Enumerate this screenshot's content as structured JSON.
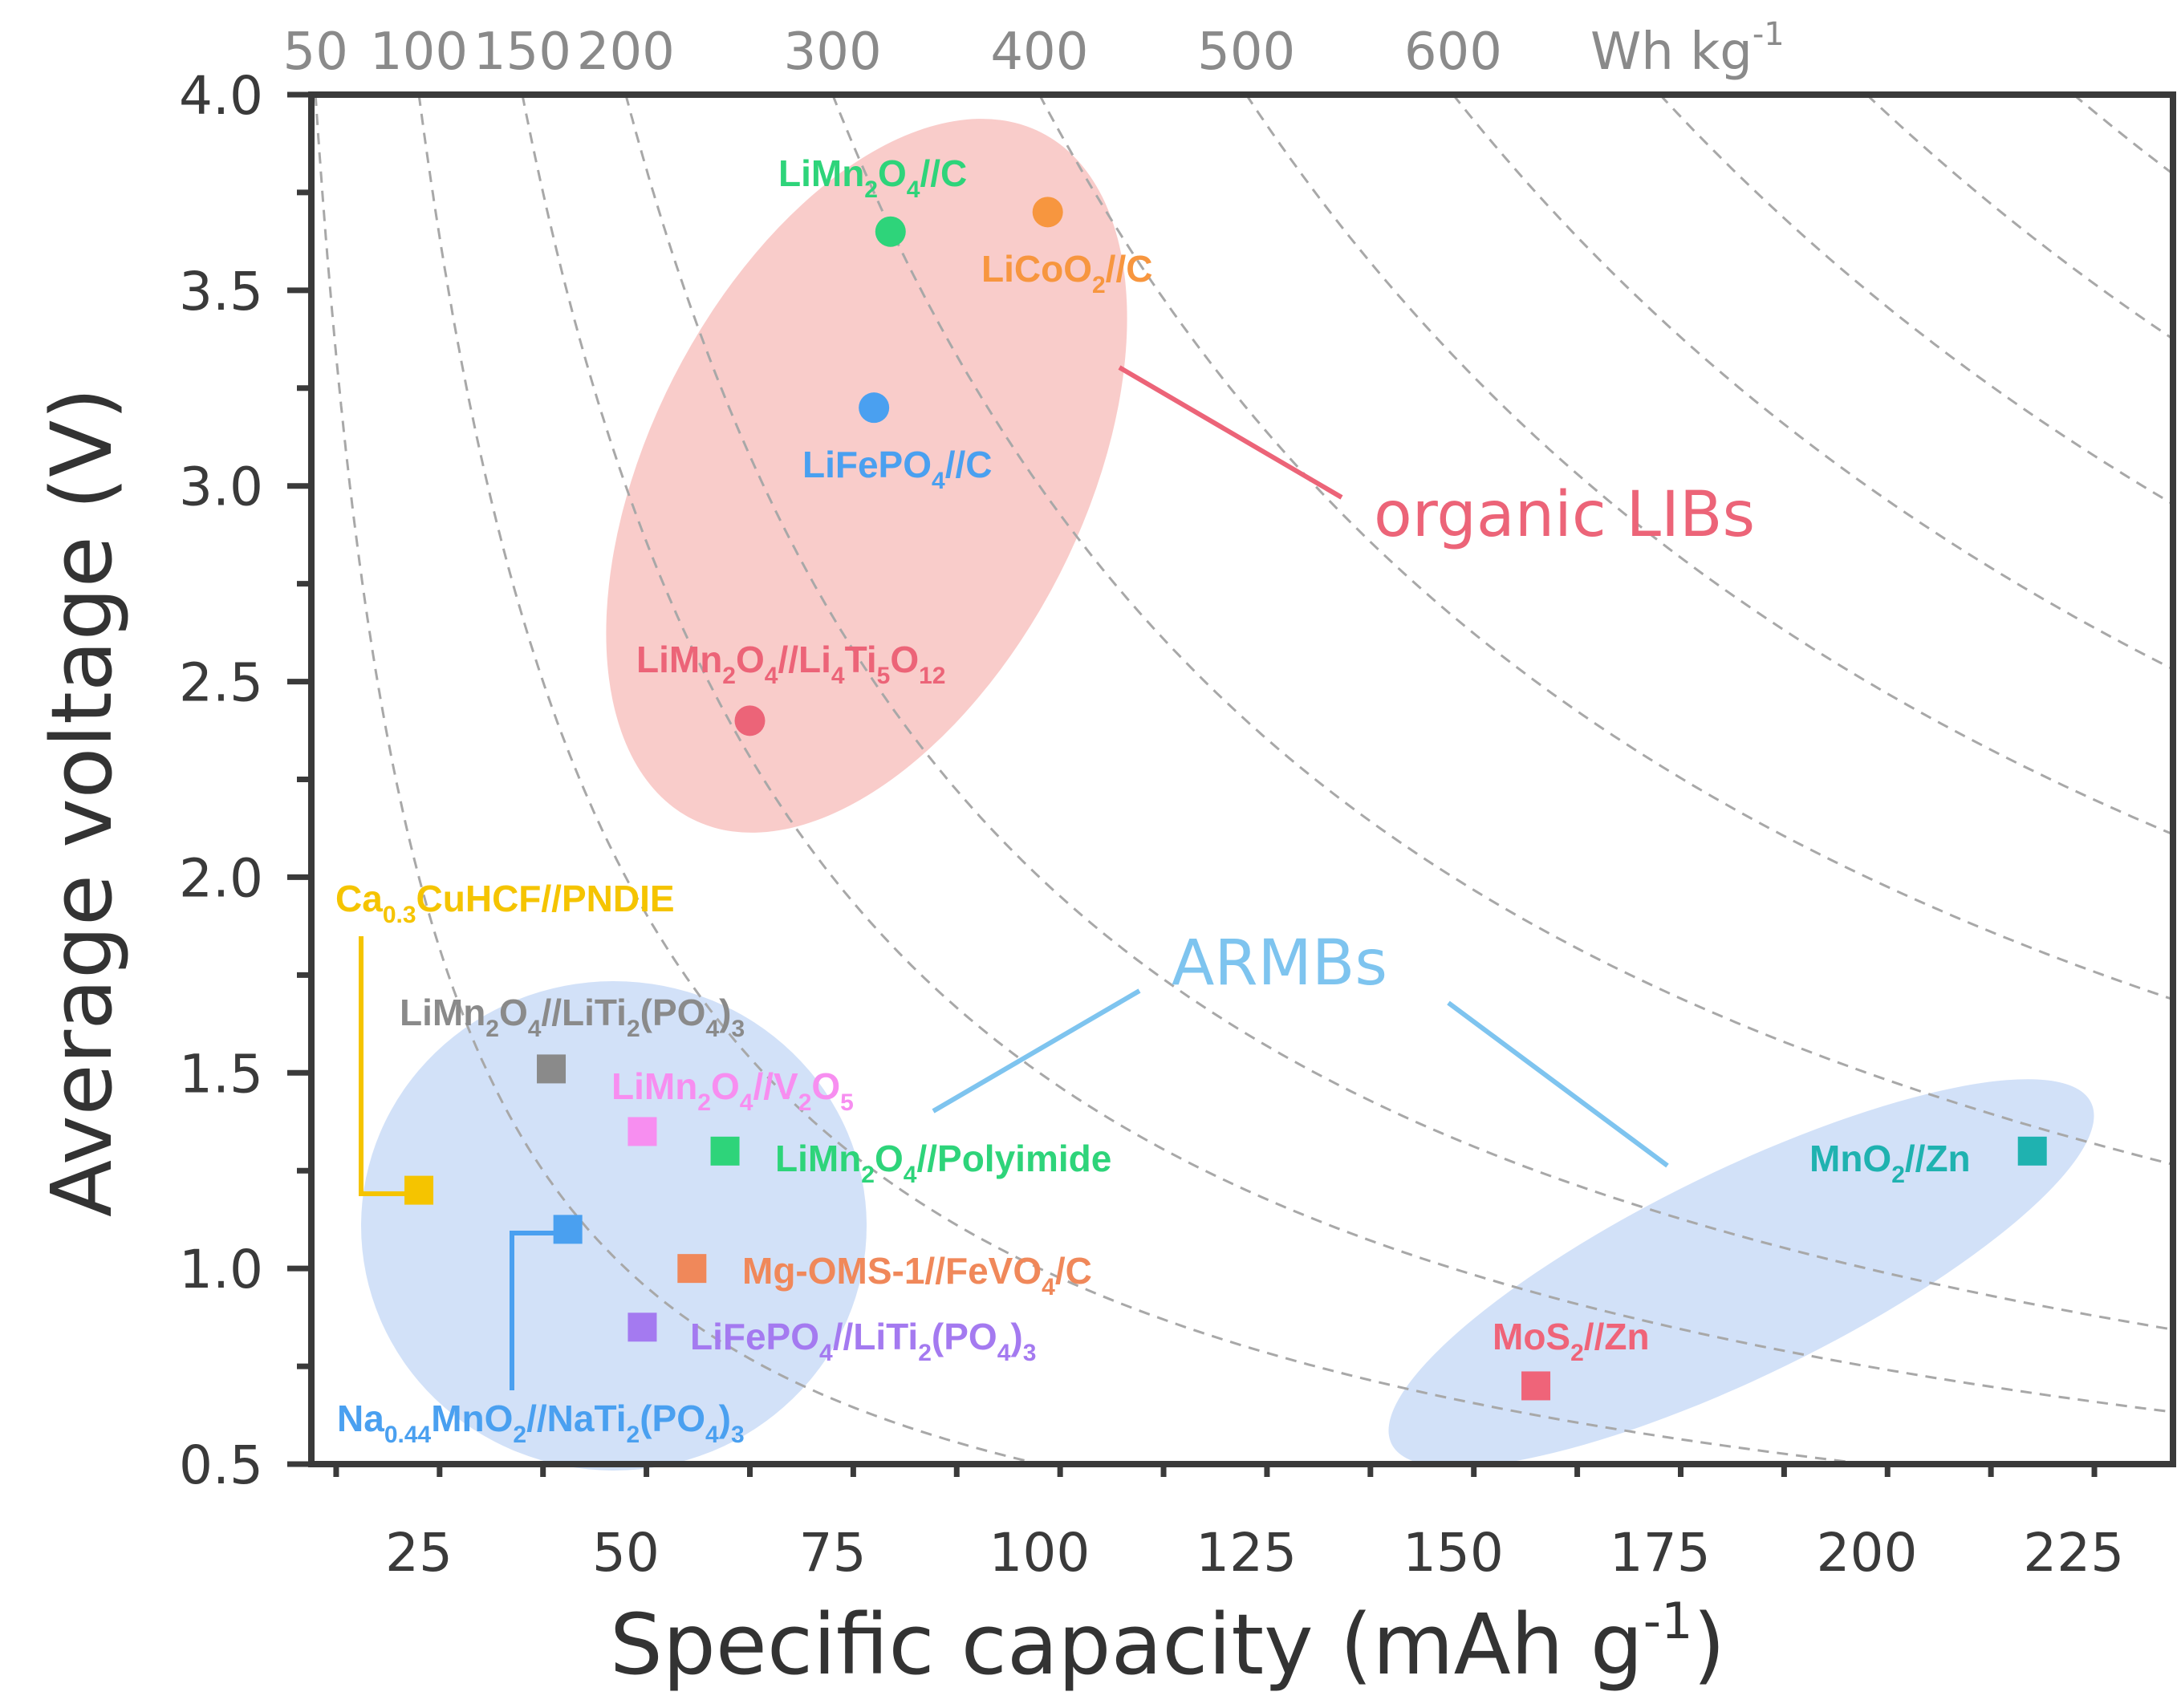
{
  "chart_data": {
    "type": "scatter",
    "xlabel": "Specific capacity (mAh g",
    "xlabel_sup": "-1",
    "xlabel_end": ")",
    "ylabel": "Average voltage (V)",
    "xlim": [
      12,
      237
    ],
    "ylim": [
      0.5,
      4.0
    ],
    "xticks": [
      25,
      50,
      75,
      100,
      125,
      150,
      175,
      200,
      225
    ],
    "yticks": [
      "0.5",
      "1.0",
      "1.5",
      "2.0",
      "2.5",
      "3.0",
      "3.5",
      "4.0"
    ],
    "energy_unit": "Wh kg",
    "energy_unit_sup": "-1",
    "energy_curves": [
      50,
      100,
      150,
      200,
      300,
      400,
      500,
      600,
      700,
      800,
      900,
      1000
    ],
    "energy_labels": [
      "50",
      "100",
      "150",
      "200",
      "300",
      "400",
      "500",
      "600"
    ],
    "regions": [
      {
        "name": "organic LIBs",
        "color": "#f7b7b4"
      },
      {
        "name": "ARMBs",
        "color": "#c3d7f5"
      }
    ],
    "group_labels": [
      {
        "text": "organic LIBs",
        "color": "#ec6478"
      },
      {
        "text": "ARMBs",
        "color": "#7ec4ef"
      }
    ],
    "points": [
      {
        "name": "LiMn2O4//C",
        "x": 82,
        "y": 3.65,
        "marker": "circle",
        "color": "#2ed47a",
        "label": [
          [
            "LiMn",
            ""
          ],
          [
            "2",
            "sub"
          ],
          [
            "O",
            ""
          ],
          [
            "4",
            "sub"
          ],
          [
            "//C",
            ""
          ]
        ]
      },
      {
        "name": "LiCoO2//C",
        "x": 101,
        "y": 3.7,
        "marker": "circle",
        "color": "#f7963f",
        "label": [
          [
            "LiCoO",
            ""
          ],
          [
            "2",
            "sub"
          ],
          [
            "//C",
            ""
          ]
        ]
      },
      {
        "name": "LiFePO4//C",
        "x": 80,
        "y": 3.2,
        "marker": "circle",
        "color": "#4aa0f0",
        "label": [
          [
            "LiFePO",
            ""
          ],
          [
            "4",
            "sub"
          ],
          [
            "//C",
            ""
          ]
        ]
      },
      {
        "name": "LiMn2O4//Li4Ti5O12",
        "x": 65,
        "y": 2.4,
        "marker": "circle",
        "color": "#ec6478",
        "label": [
          [
            "LiMn",
            ""
          ],
          [
            "2",
            "sub"
          ],
          [
            "O",
            ""
          ],
          [
            "4",
            "sub"
          ],
          [
            "//Li",
            ""
          ],
          [
            "4",
            "sub"
          ],
          [
            "Ti",
            ""
          ],
          [
            "5",
            "sub"
          ],
          [
            "O",
            ""
          ],
          [
            "12",
            "sub"
          ]
        ]
      },
      {
        "name": "Ca0.3CuHCF//PNDIE",
        "x": 25,
        "y": 1.2,
        "marker": "square",
        "color": "#f5c400",
        "label": [
          [
            "Ca",
            ""
          ],
          [
            "0.3",
            "sub"
          ],
          [
            "CuHCF//PNDIE",
            ""
          ]
        ]
      },
      {
        "name": "LiMn2O4//LiTi2(PO4)3",
        "x": 41,
        "y": 1.51,
        "marker": "square",
        "color": "#8a8a8a",
        "label": [
          [
            "LiMn",
            ""
          ],
          [
            "2",
            "sub"
          ],
          [
            "O",
            ""
          ],
          [
            "4",
            "sub"
          ],
          [
            "//LiTi",
            ""
          ],
          [
            "2",
            "sub"
          ],
          [
            "(PO",
            ""
          ],
          [
            "4",
            "sub"
          ],
          [
            ")",
            ""
          ],
          [
            "3",
            "sub"
          ]
        ]
      },
      {
        "name": "LiMn2O4//V2O5",
        "x": 52,
        "y": 1.35,
        "marker": "square",
        "color": "#f78ef0",
        "label": [
          [
            "LiMn",
            ""
          ],
          [
            "2",
            "sub"
          ],
          [
            "O",
            ""
          ],
          [
            "4",
            "sub"
          ],
          [
            "//V",
            ""
          ],
          [
            "2",
            "sub"
          ],
          [
            "O",
            ""
          ],
          [
            "5",
            "sub"
          ]
        ]
      },
      {
        "name": "LiMn2O4//Polyimide",
        "x": 62,
        "y": 1.3,
        "marker": "square",
        "color": "#2ed47a",
        "label": [
          [
            "LiMn",
            ""
          ],
          [
            "2",
            "sub"
          ],
          [
            "O",
            ""
          ],
          [
            "4",
            "sub"
          ],
          [
            "//Polyimide",
            ""
          ]
        ]
      },
      {
        "name": "Na0.44MnO2//NaTi2(PO4)3",
        "x": 43,
        "y": 1.1,
        "marker": "square",
        "color": "#4aa0f0",
        "label": [
          [
            "Na",
            ""
          ],
          [
            "0.44",
            "sub"
          ],
          [
            "MnO",
            ""
          ],
          [
            "2",
            "sub"
          ],
          [
            "//NaTi",
            ""
          ],
          [
            "2",
            "sub"
          ],
          [
            "(PO",
            ""
          ],
          [
            "4",
            "sub"
          ],
          [
            ")",
            ""
          ],
          [
            "3",
            "sub"
          ]
        ]
      },
      {
        "name": "Mg-OMS-1//FeVO4/C",
        "x": 58,
        "y": 1.0,
        "marker": "square",
        "color": "#f0885a",
        "label": [
          [
            "Mg-OMS-1//FeVO",
            ""
          ],
          [
            "4",
            "sub"
          ],
          [
            "/C",
            ""
          ]
        ]
      },
      {
        "name": "LiFePO4//LiTi2(PO4)3",
        "x": 52,
        "y": 0.85,
        "marker": "square",
        "color": "#a47af0",
        "label": [
          [
            "LiFePO",
            ""
          ],
          [
            "4",
            "sub"
          ],
          [
            "//LiTi",
            ""
          ],
          [
            "2",
            "sub"
          ],
          [
            "(PO",
            ""
          ],
          [
            "4",
            "sub"
          ],
          [
            ")",
            ""
          ],
          [
            "3",
            "sub"
          ]
        ]
      },
      {
        "name": "MnO2//Zn",
        "x": 220,
        "y": 1.3,
        "marker": "square",
        "color": "#1fb2b0",
        "label": [
          [
            "MnO",
            ""
          ],
          [
            "2",
            "sub"
          ],
          [
            "//Zn",
            ""
          ]
        ]
      },
      {
        "name": "MoS2//Zn",
        "x": 160,
        "y": 0.7,
        "marker": "square",
        "color": "#ef6479",
        "label": [
          [
            "MoS",
            ""
          ],
          [
            "2",
            "sub"
          ],
          [
            "//Zn",
            ""
          ]
        ]
      }
    ]
  }
}
